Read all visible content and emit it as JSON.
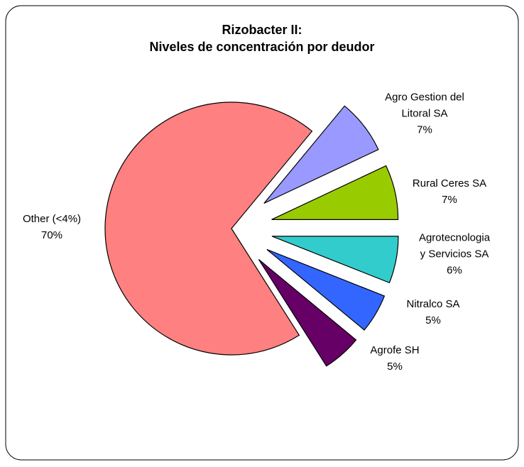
{
  "chart_data": {
    "type": "pie",
    "title": "Rizobacter II:\nNiveles de concentración por deudor",
    "categories": [
      "Agro Gestion del Litoral SA",
      "Rural Ceres SA",
      "Agrotecnologia y Servicios SA",
      "Nitralco SA",
      "Agrofe SH",
      "Other (<4%)"
    ],
    "values": [
      7,
      7,
      6,
      5,
      5,
      70
    ],
    "value_labels": [
      "7%",
      "7%",
      "6%",
      "5%",
      "5%",
      "70%"
    ],
    "colors": [
      "#9999ff",
      "#99cc00",
      "#33cccc",
      "#3366ff",
      "#660066",
      "#ff8080"
    ]
  }
}
